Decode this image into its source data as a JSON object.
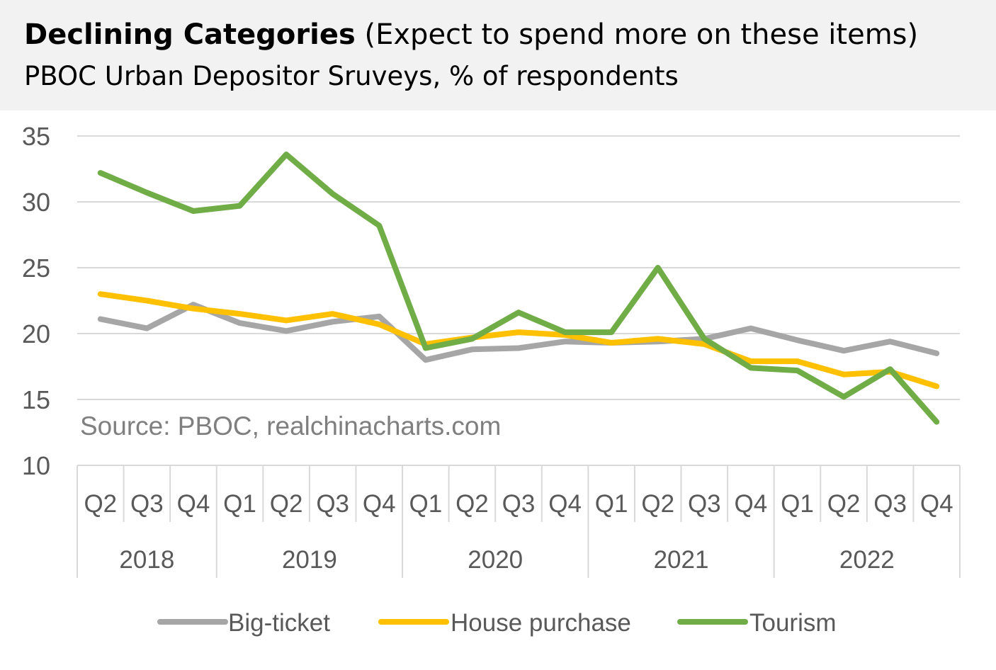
{
  "header": {
    "title_bold": "Declining Categories",
    "title_rest": " (Expect to spend more on these items)",
    "subtitle": "PBOC Urban Depositor Sruveys, % of respondents"
  },
  "source_note": "Source: PBOC, realchinacharts.com",
  "chart_data": {
    "type": "line",
    "title": "Declining Categories (Expect to spend more on these items)",
    "subtitle": "PBOC Urban Depositor Sruveys, % of respondents",
    "categories": [
      "Q2",
      "Q3",
      "Q4",
      "Q1",
      "Q2",
      "Q3",
      "Q4",
      "Q1",
      "Q2",
      "Q3",
      "Q4",
      "Q1",
      "Q2",
      "Q3",
      "Q4",
      "Q1",
      "Q2",
      "Q3",
      "Q4"
    ],
    "years": [
      {
        "label": "2018",
        "start": 0,
        "count": 3
      },
      {
        "label": "2019",
        "start": 3,
        "count": 4
      },
      {
        "label": "2020",
        "start": 7,
        "count": 4
      },
      {
        "label": "2021",
        "start": 11,
        "count": 4
      },
      {
        "label": "2022",
        "start": 15,
        "count": 4
      }
    ],
    "ylim": [
      10,
      35
    ],
    "yticks": [
      10,
      15,
      20,
      25,
      30,
      35
    ],
    "grid": true,
    "legend_position": "bottom",
    "series": [
      {
        "name": "Big-ticket",
        "color": "#a6a6a6",
        "values": [
          21.1,
          20.4,
          22.2,
          20.8,
          20.2,
          20.9,
          21.3,
          18.0,
          18.8,
          18.9,
          19.4,
          19.3,
          19.4,
          19.6,
          20.4,
          19.5,
          18.7,
          19.4,
          18.5
        ]
      },
      {
        "name": "House purchase",
        "color": "#ffc000",
        "values": [
          23.0,
          22.5,
          21.9,
          21.5,
          21.0,
          21.5,
          20.7,
          19.2,
          19.7,
          20.1,
          19.9,
          19.3,
          19.6,
          19.2,
          17.9,
          17.9,
          16.9,
          17.1,
          16.0
        ]
      },
      {
        "name": "Tourism",
        "color": "#70ad47",
        "values": [
          32.2,
          30.7,
          29.3,
          29.7,
          33.6,
          30.6,
          28.2,
          18.9,
          19.6,
          21.6,
          20.1,
          20.1,
          25.0,
          19.6,
          17.4,
          17.2,
          15.2,
          17.3,
          13.3
        ]
      }
    ]
  }
}
